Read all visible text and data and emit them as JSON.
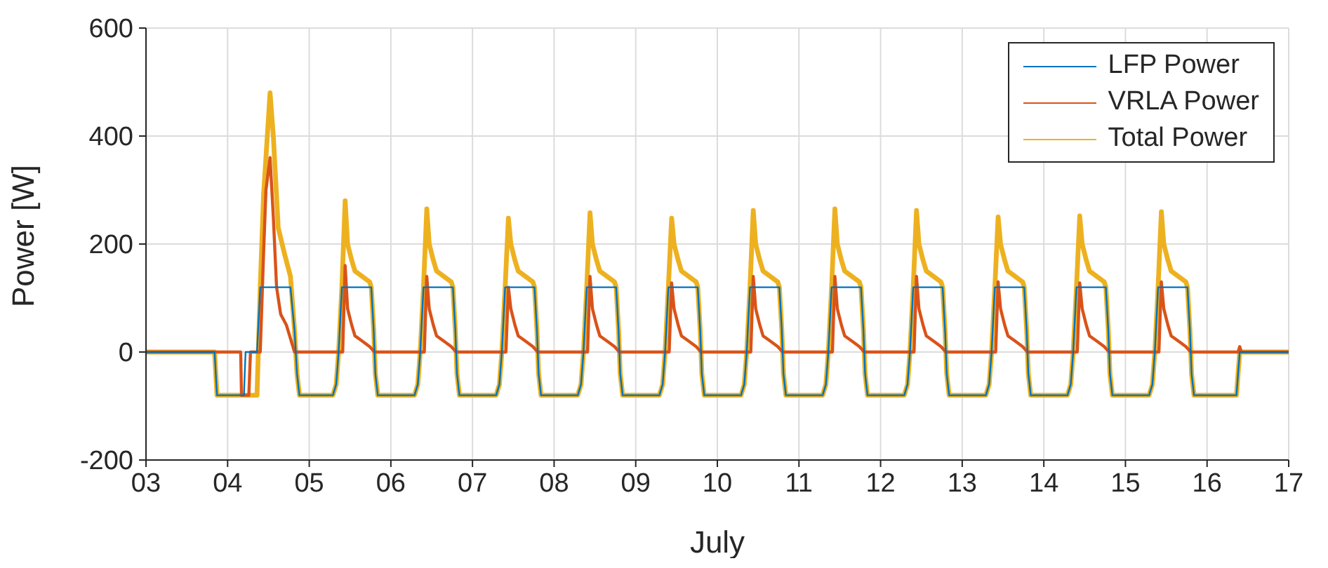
{
  "chart_data": {
    "type": "line",
    "xlabel": "July",
    "ylabel": "Power [W]",
    "xlim": [
      3,
      17
    ],
    "xticks": [
      {
        "value": 3,
        "label": "03"
      },
      {
        "value": 4,
        "label": "04"
      },
      {
        "value": 5,
        "label": "05"
      },
      {
        "value": 6,
        "label": "06"
      },
      {
        "value": 7,
        "label": "07"
      },
      {
        "value": 8,
        "label": "08"
      },
      {
        "value": 9,
        "label": "09"
      },
      {
        "value": 10,
        "label": "10"
      },
      {
        "value": 11,
        "label": "11"
      },
      {
        "value": 12,
        "label": "12"
      },
      {
        "value": 13,
        "label": "13"
      },
      {
        "value": 14,
        "label": "14"
      },
      {
        "value": 15,
        "label": "15"
      },
      {
        "value": 16,
        "label": "16"
      },
      {
        "value": 17,
        "label": "17"
      }
    ],
    "ylim": [
      -200,
      600
    ],
    "yticks": [
      -200,
      0,
      200,
      400,
      600
    ],
    "grid": true,
    "legend": "top right",
    "series": [
      {
        "name": "LFP Power",
        "color": "#0072bd",
        "x": [
          3,
          3.84,
          3.87,
          4.2,
          4.22,
          4.36,
          4.4,
          4.77,
          4.82,
          4.85,
          4.88,
          5.29,
          5.33,
          5.36,
          5.4,
          5.76,
          5.79,
          5.81,
          5.84,
          6.29,
          6.33,
          6.36,
          6.4,
          6.76,
          6.79,
          6.81,
          6.84,
          7.29,
          7.33,
          7.36,
          7.4,
          7.76,
          7.79,
          7.81,
          7.84,
          8.29,
          8.33,
          8.36,
          8.4,
          8.76,
          8.79,
          8.81,
          8.84,
          9.29,
          9.33,
          9.36,
          9.4,
          9.76,
          9.79,
          9.81,
          9.84,
          10.29,
          10.33,
          10.36,
          10.4,
          10.76,
          10.79,
          10.81,
          10.84,
          11.29,
          11.33,
          11.36,
          11.4,
          11.76,
          11.79,
          11.81,
          11.84,
          12.29,
          12.33,
          12.36,
          12.4,
          12.76,
          12.79,
          12.81,
          12.84,
          13.29,
          13.33,
          13.36,
          13.4,
          13.76,
          13.79,
          13.81,
          13.84,
          14.29,
          14.33,
          14.36,
          14.4,
          14.76,
          14.79,
          14.81,
          14.84,
          15.29,
          15.33,
          15.36,
          15.4,
          15.76,
          15.79,
          15.81,
          15.84,
          16.36,
          16.4,
          17
        ],
        "values": [
          0,
          0,
          -80,
          -80,
          0,
          0,
          120,
          120,
          40,
          -40,
          -80,
          -80,
          -60,
          0,
          120,
          120,
          40,
          -40,
          -80,
          -80,
          -60,
          0,
          120,
          120,
          40,
          -40,
          -80,
          -80,
          -60,
          0,
          120,
          120,
          40,
          -40,
          -80,
          -80,
          -60,
          0,
          120,
          120,
          40,
          -40,
          -80,
          -80,
          -60,
          0,
          120,
          120,
          40,
          -40,
          -80,
          -80,
          -60,
          0,
          120,
          120,
          40,
          -40,
          -80,
          -80,
          -60,
          0,
          120,
          120,
          40,
          -40,
          -80,
          -80,
          -60,
          0,
          120,
          120,
          40,
          -40,
          -80,
          -80,
          -60,
          0,
          120,
          120,
          40,
          -40,
          -80,
          -80,
          -60,
          0,
          120,
          120,
          40,
          -40,
          -80,
          -80,
          -60,
          0,
          120,
          120,
          40,
          -40,
          -80,
          -80,
          0,
          0
        ]
      },
      {
        "name": "VRLA Power",
        "color": "#d95319",
        "x": [
          3,
          4.16,
          4.17,
          4.26,
          4.28,
          4.4,
          4.44,
          4.47,
          4.52,
          4.56,
          4.6,
          4.65,
          4.72,
          4.78,
          4.82,
          5.41,
          5.44,
          5.47,
          5.52,
          5.56,
          5.65,
          5.74,
          5.8,
          6.41,
          6.44,
          6.47,
          6.52,
          6.56,
          6.65,
          6.74,
          6.8,
          7.41,
          7.44,
          7.47,
          7.52,
          7.56,
          7.65,
          7.74,
          7.8,
          8.41,
          8.44,
          8.47,
          8.52,
          8.56,
          8.65,
          8.74,
          8.8,
          9.41,
          9.44,
          9.47,
          9.52,
          9.56,
          9.65,
          9.74,
          9.8,
          10.41,
          10.44,
          10.47,
          10.52,
          10.56,
          10.65,
          10.74,
          10.8,
          11.41,
          11.44,
          11.47,
          11.52,
          11.56,
          11.65,
          11.74,
          11.8,
          12.41,
          12.44,
          12.47,
          12.52,
          12.56,
          12.65,
          12.74,
          12.8,
          13.41,
          13.44,
          13.47,
          13.52,
          13.56,
          13.65,
          13.74,
          13.8,
          14.41,
          14.44,
          14.47,
          14.52,
          14.56,
          14.65,
          14.74,
          14.8,
          15.41,
          15.44,
          15.47,
          15.52,
          15.56,
          15.65,
          15.74,
          15.8,
          16.38,
          16.4,
          16.42,
          17
        ],
        "values": [
          0,
          0,
          -80,
          -80,
          0,
          0,
          180,
          300,
          360,
          250,
          120,
          70,
          50,
          20,
          0,
          0,
          160,
          80,
          50,
          30,
          20,
          10,
          0,
          0,
          140,
          80,
          50,
          30,
          20,
          10,
          0,
          0,
          120,
          80,
          50,
          30,
          20,
          10,
          0,
          0,
          140,
          80,
          50,
          30,
          20,
          10,
          0,
          0,
          128,
          80,
          50,
          30,
          20,
          10,
          0,
          0,
          140,
          80,
          50,
          30,
          20,
          10,
          0,
          0,
          140,
          80,
          50,
          30,
          20,
          10,
          0,
          0,
          140,
          80,
          50,
          30,
          20,
          10,
          0,
          0,
          130,
          80,
          50,
          30,
          20,
          10,
          0,
          0,
          128,
          80,
          50,
          30,
          20,
          10,
          0,
          0,
          130,
          80,
          50,
          30,
          20,
          10,
          0,
          0,
          10,
          0,
          0
        ]
      },
      {
        "name": "Total Power",
        "color": "#edb120",
        "x": [
          3,
          3.84,
          3.87,
          4.36,
          4.4,
          4.44,
          4.52,
          4.56,
          4.62,
          4.7,
          4.77,
          4.82,
          4.85,
          4.88,
          5.29,
          5.33,
          5.36,
          5.4,
          5.44,
          5.47,
          5.52,
          5.56,
          5.65,
          5.74,
          5.76,
          5.79,
          5.81,
          5.84,
          6.29,
          6.33,
          6.36,
          6.4,
          6.44,
          6.47,
          6.52,
          6.56,
          6.65,
          6.74,
          6.76,
          6.79,
          6.81,
          6.84,
          7.29,
          7.33,
          7.36,
          7.4,
          7.44,
          7.47,
          7.52,
          7.56,
          7.65,
          7.74,
          7.76,
          7.79,
          7.81,
          7.84,
          8.29,
          8.33,
          8.36,
          8.4,
          8.44,
          8.47,
          8.52,
          8.56,
          8.65,
          8.74,
          8.76,
          8.79,
          8.81,
          8.84,
          9.29,
          9.33,
          9.36,
          9.4,
          9.44,
          9.47,
          9.52,
          9.56,
          9.65,
          9.74,
          9.76,
          9.79,
          9.81,
          9.84,
          10.29,
          10.33,
          10.36,
          10.4,
          10.44,
          10.47,
          10.52,
          10.56,
          10.65,
          10.74,
          10.76,
          10.79,
          10.81,
          10.84,
          11.29,
          11.33,
          11.36,
          11.4,
          11.44,
          11.47,
          11.52,
          11.56,
          11.65,
          11.74,
          11.76,
          11.79,
          11.81,
          11.84,
          12.29,
          12.33,
          12.36,
          12.4,
          12.44,
          12.47,
          12.52,
          12.56,
          12.65,
          12.74,
          12.76,
          12.79,
          12.81,
          12.84,
          13.29,
          13.33,
          13.36,
          13.4,
          13.44,
          13.47,
          13.52,
          13.56,
          13.65,
          13.74,
          13.76,
          13.79,
          13.81,
          13.84,
          14.29,
          14.33,
          14.36,
          14.4,
          14.44,
          14.47,
          14.52,
          14.56,
          14.65,
          14.74,
          14.76,
          14.79,
          14.81,
          14.84,
          15.29,
          15.33,
          15.36,
          15.4,
          15.44,
          15.47,
          15.52,
          15.56,
          15.65,
          15.74,
          15.76,
          15.79,
          15.81,
          15.84,
          16.36,
          16.4,
          17
        ],
        "values": [
          0,
          0,
          -80,
          -80,
          120,
          290,
          480,
          400,
          230,
          180,
          140,
          40,
          -40,
          -80,
          -80,
          -60,
          0,
          120,
          280,
          200,
          170,
          150,
          140,
          130,
          120,
          40,
          -40,
          -80,
          -80,
          -60,
          0,
          120,
          265,
          200,
          170,
          150,
          140,
          130,
          120,
          40,
          -40,
          -80,
          -80,
          -60,
          0,
          120,
          248,
          200,
          170,
          150,
          140,
          130,
          120,
          40,
          -40,
          -80,
          -80,
          -60,
          0,
          120,
          258,
          200,
          170,
          150,
          140,
          130,
          120,
          40,
          -40,
          -80,
          -80,
          -60,
          0,
          120,
          248,
          200,
          170,
          150,
          140,
          130,
          120,
          40,
          -40,
          -80,
          -80,
          -60,
          0,
          120,
          262,
          200,
          170,
          150,
          140,
          130,
          120,
          40,
          -40,
          -80,
          -80,
          -60,
          0,
          120,
          265,
          200,
          170,
          150,
          140,
          130,
          120,
          40,
          -40,
          -80,
          -80,
          -60,
          0,
          120,
          262,
          200,
          170,
          150,
          140,
          130,
          120,
          40,
          -40,
          -80,
          -80,
          -60,
          0,
          120,
          250,
          200,
          170,
          150,
          140,
          130,
          120,
          40,
          -40,
          -80,
          -80,
          -60,
          0,
          120,
          252,
          200,
          170,
          150,
          140,
          130,
          120,
          40,
          -40,
          -80,
          -80,
          -60,
          0,
          120,
          260,
          200,
          170,
          150,
          140,
          130,
          120,
          40,
          -40,
          -80,
          -80,
          0,
          0
        ]
      }
    ]
  }
}
